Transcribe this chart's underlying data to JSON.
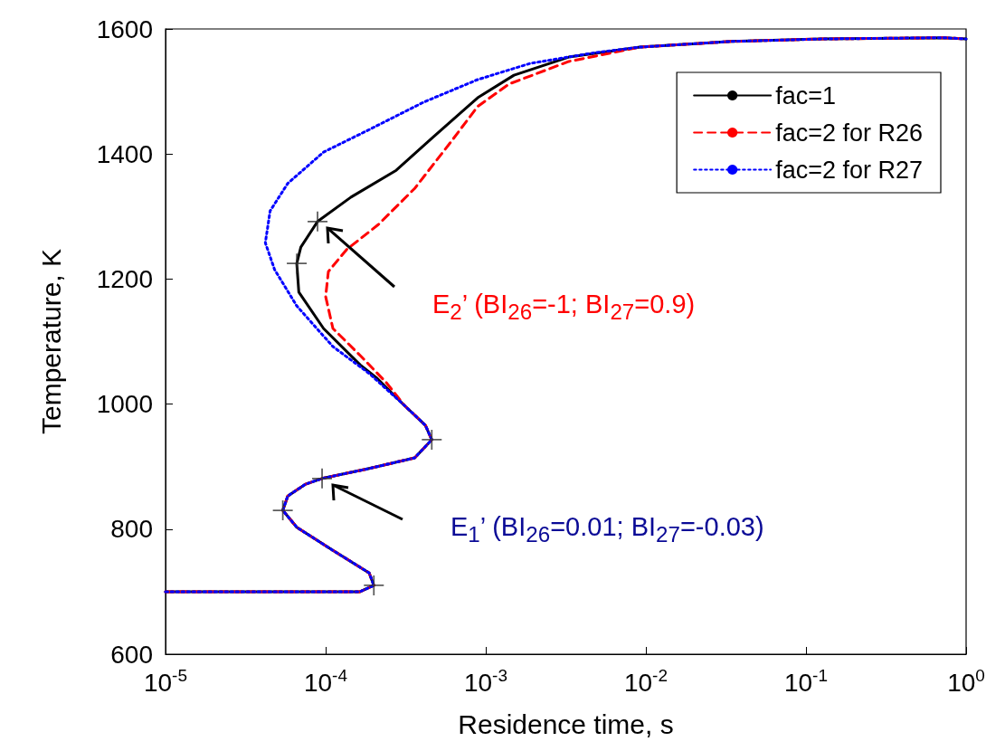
{
  "chart_data": {
    "type": "line",
    "xlabel": "Residence time, s",
    "ylabel": "Temperature, K",
    "log": "x",
    "grid": false,
    "legend": "top right",
    "xlim": [
      1e-05,
      1
    ],
    "xticks": [
      {
        "value": 1e-05,
        "label": "10$^{-5}$"
      },
      {
        "value": 0.0001,
        "label": "10$^{-4}$"
      },
      {
        "value": 0.001,
        "label": "10$^{-3}$"
      },
      {
        "value": 0.01,
        "label": "10$^{-2}$"
      },
      {
        "value": 0.1,
        "label": "10$^{-1}$"
      },
      {
        "value": 1,
        "label": "10$^{0}$"
      }
    ],
    "ylim": [
      600,
      1600
    ],
    "yticks": [
      600,
      800,
      1000,
      1200,
      1400,
      1600
    ],
    "series": [
      {
        "name": "fac=1",
        "color": "#000000",
        "line_style": "solid",
        "x": [
          1e-05,
          0.000164,
          0.0002,
          0.000187,
          0.000111,
          6.6e-05,
          5.4e-05,
          5.8e-05,
          7.5e-05,
          9.5e-05,
          0.000187,
          0.00036,
          0.00046,
          0.00042,
          0.00031,
          0.00021,
          0.000164,
          9.7e-05,
          6.8e-05,
          6.6e-05,
          7e-05,
          8.9e-05,
          0.000144,
          0.000276,
          0.00046,
          0.00089,
          0.0015,
          0.0033,
          0.0092,
          0.034,
          0.125,
          0.72,
          1
        ],
        "values": [
          700,
          700,
          710,
          730,
          766,
          803,
          830,
          853,
          872,
          881,
          897,
          914,
          943,
          966,
          998,
          1041,
          1063,
          1121,
          1179,
          1225,
          1251,
          1292,
          1331,
          1374,
          1425,
          1490,
          1526,
          1555,
          1571,
          1580,
          1584,
          1586,
          1584
        ]
      },
      {
        "name": "fac=2 for R26",
        "color": "#ff0000",
        "line_style": "dashed",
        "x": [
          1e-05,
          0.000164,
          0.0002,
          0.000187,
          0.000111,
          6.6e-05,
          5.4e-05,
          5.8e-05,
          7.5e-05,
          9.5e-05,
          0.000187,
          0.00036,
          0.00046,
          0.00042,
          0.00031,
          0.00024,
          0.000164,
          0.000111,
          0.0001,
          0.000104,
          0.000135,
          0.000213,
          0.00036,
          0.0006,
          0.00089,
          0.0014,
          0.0033,
          0.0092,
          0.034,
          0.125,
          0.72,
          1
        ],
        "values": [
          700,
          700,
          710,
          730,
          766,
          803,
          830,
          853,
          872,
          881,
          897,
          914,
          943,
          966,
          998,
          1034,
          1078,
          1121,
          1172,
          1212,
          1247,
          1287,
          1345,
          1418,
          1476,
          1512,
          1548,
          1571,
          1580,
          1584,
          1586,
          1584
        ]
      },
      {
        "name": "fac=2 for R27",
        "color": "#0000ff",
        "line_style": "dotted",
        "x": [
          1e-05,
          0.000164,
          0.0002,
          0.000187,
          0.000111,
          6.6e-05,
          5.4e-05,
          5.8e-05,
          7.5e-05,
          9.5e-05,
          0.000187,
          0.00036,
          0.00046,
          0.00042,
          0.00031,
          0.000187,
          0.000111,
          6.6e-05,
          4.8e-05,
          4.2e-05,
          4.5e-05,
          5.8e-05,
          9.7e-05,
          0.000187,
          0.00041,
          0.00089,
          0.0019,
          0.0048,
          0.0092,
          0.034,
          0.125,
          0.72,
          1
        ],
        "values": [
          700,
          700,
          710,
          730,
          766,
          803,
          830,
          853,
          872,
          881,
          897,
          914,
          943,
          966,
          998,
          1049,
          1092,
          1157,
          1215,
          1258,
          1309,
          1353,
          1403,
          1439,
          1483,
          1519,
          1545,
          1562,
          1571,
          1580,
          1584,
          1586,
          1584
        ]
      },
      {
        "type": "scatter",
        "color": "#333333",
        "marker": "cross",
        "x": [
          0.0002,
          5.4e-05,
          9.5e-05,
          0.00046,
          6.6e-05,
          8.9e-05
        ],
        "values": [
          710,
          830,
          881,
          943,
          1225,
          1292
        ]
      }
    ],
    "annotations": [
      "E$_{2}$’ (BI$_{26}$=-1; BI$_{27}$=0.9)",
      "E$_{1}$’ (BI$_{26}$=0.01; BI$_{27}$=-0.03)"
    ]
  }
}
